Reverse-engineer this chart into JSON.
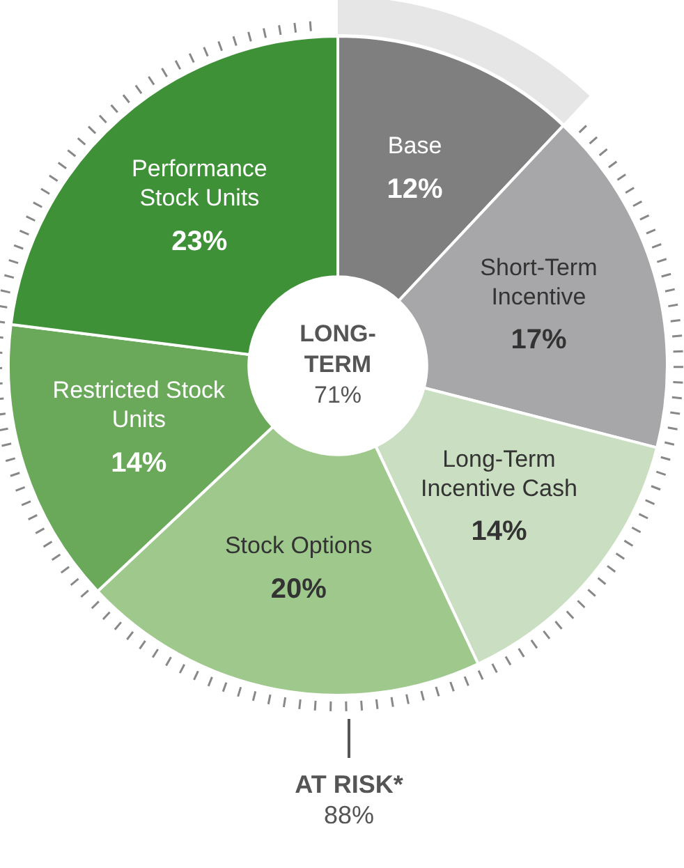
{
  "chart_data": {
    "type": "donut",
    "categories": [
      "Base",
      "Short-Term Incentive",
      "Long-Term Incentive Cash",
      "Stock Options",
      "Restricted Stock Units",
      "Performance Stock Units"
    ],
    "values": [
      12,
      17,
      14,
      20,
      14,
      23
    ],
    "colors": [
      "#7f7f80",
      "#a7a7a9",
      "#cadec1",
      "#9fc98c",
      "#6aa85a",
      "#3f9138"
    ],
    "value_labels": [
      "12%",
      "17%",
      "14%",
      "20%",
      "14%",
      "23%"
    ],
    "annotations": [
      "LONG-\nTERM\n71%",
      "AT RISK*\n88%"
    ],
    "legend": false
  }
}
